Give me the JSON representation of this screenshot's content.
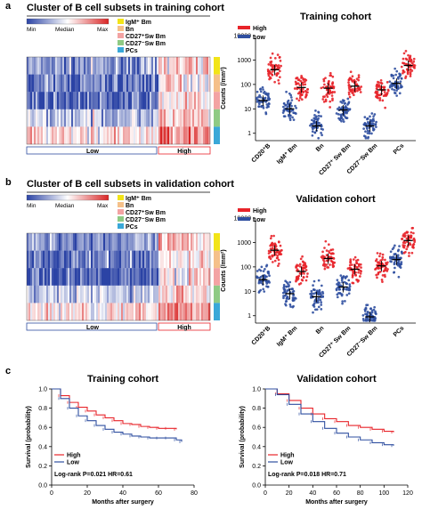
{
  "panels": {
    "a": {
      "label": "a",
      "heatmap_title": "Cluster of B cell subsets in training cohort",
      "colorbar": [
        "Min",
        "Median",
        "Max"
      ],
      "subset_legend": [
        "IgM⁺ Bm",
        "Bn",
        "CD27⁺Sw Bm",
        "CD27⁻Sw Bm",
        "PCs"
      ],
      "subset_colors": [
        "#f2e418",
        "#f5c089",
        "#f3a3a3",
        "#8fca84",
        "#3aa8d8"
      ],
      "groups": [
        "Low",
        "High"
      ]
    },
    "b": {
      "label": "b",
      "heatmap_title": "Cluster of B cell subsets in  validation cohort",
      "colorbar": [
        "Min",
        "Median",
        "Max"
      ],
      "subset_legend": [
        "IgM⁺ Bm",
        "Bn",
        "CD27⁺Sw Bm",
        "CD27⁻Sw Bm",
        "PCs"
      ],
      "subset_colors": [
        "#f2e418",
        "#f5c089",
        "#f3a3a3",
        "#8fca84",
        "#3aa8d8"
      ],
      "groups": [
        "Low",
        "High"
      ]
    },
    "c": {
      "label": "c"
    }
  },
  "chart_data": [
    {
      "type": "scatter",
      "title": "Training cohort",
      "ylabel": "Counts (/mm²)",
      "yscale": "log",
      "ylim": [
        0.5,
        10000
      ],
      "yticks": [
        "1",
        "10",
        "100",
        "1000",
        "10000"
      ],
      "categories": [
        "CD20⁺B",
        "IgM⁺ Bm",
        "Bn",
        "CD27⁺ Sw Bm",
        "CD27⁻Sw Bm",
        "PCs"
      ],
      "legend": [
        "High",
        "Low"
      ],
      "legend_position": "top-left",
      "colors": {
        "High": "#e8242a",
        "Low": "#2f4fa0"
      },
      "series": [
        {
          "name": "Low",
          "medians": [
            22,
            10,
            2,
            9,
            2,
            110
          ]
        },
        {
          "name": "High",
          "medians": [
            400,
            75,
            70,
            85,
            60,
            600
          ]
        }
      ]
    },
    {
      "type": "scatter",
      "title": "Validation cohort",
      "ylabel": "Counts (/mm²)",
      "yscale": "log",
      "ylim": [
        0.5,
        10000
      ],
      "yticks": [
        "1",
        "10",
        "100",
        "1000",
        "10000"
      ],
      "categories": [
        "CD20⁺B",
        "IgM⁺ Bm",
        "Bn",
        "CD27⁺ Sw Bm",
        "CD27⁻Sw Bm",
        "PCs"
      ],
      "legend": [
        "High",
        "Low"
      ],
      "legend_position": "top-left",
      "colors": {
        "High": "#e8242a",
        "Low": "#2f4fa0"
      },
      "series": [
        {
          "name": "Low",
          "medians": [
            30,
            8,
            6,
            15,
            0.9,
            200
          ]
        },
        {
          "name": "High",
          "medians": [
            480,
            65,
            220,
            80,
            110,
            1200
          ]
        }
      ]
    },
    {
      "type": "line",
      "title": "Training cohort",
      "xlabel": "Months after surgery",
      "ylabel": "Survival (probability)",
      "xlim": [
        0,
        80
      ],
      "ylim": [
        0,
        1.0
      ],
      "xticks": [
        "0",
        "20",
        "40",
        "60",
        "80"
      ],
      "yticks": [
        "0.0",
        "0.2",
        "0.4",
        "0.6",
        "0.8",
        "1.0"
      ],
      "legend": [
        "High",
        "Low"
      ],
      "annotation": "Log-rank P=0.021 HR=0.61",
      "series": [
        {
          "name": "High",
          "color": "#e8242a",
          "x": [
            0,
            5,
            10,
            15,
            20,
            25,
            30,
            35,
            40,
            45,
            50,
            55,
            60,
            65,
            70
          ],
          "y": [
            1.0,
            0.93,
            0.86,
            0.81,
            0.77,
            0.73,
            0.7,
            0.67,
            0.64,
            0.63,
            0.61,
            0.6,
            0.59,
            0.59,
            0.58
          ]
        },
        {
          "name": "Low",
          "color": "#2f4fa0",
          "x": [
            0,
            5,
            10,
            15,
            20,
            25,
            30,
            35,
            40,
            45,
            50,
            55,
            60,
            65,
            70,
            73
          ],
          "y": [
            1.0,
            0.9,
            0.8,
            0.72,
            0.67,
            0.62,
            0.58,
            0.55,
            0.53,
            0.51,
            0.5,
            0.49,
            0.49,
            0.49,
            0.47,
            0.45
          ]
        }
      ]
    },
    {
      "type": "line",
      "title": "Validation cohort",
      "xlabel": "Months after surgery",
      "ylabel": "Survival (probability)",
      "xlim": [
        0,
        120
      ],
      "ylim": [
        0,
        1.0
      ],
      "xticks": [
        "0",
        "20",
        "40",
        "60",
        "80",
        "100",
        "120"
      ],
      "yticks": [
        "0.0",
        "0.2",
        "0.4",
        "0.6",
        "0.8",
        "1.0"
      ],
      "legend": [
        "High",
        "Low"
      ],
      "annotation": "Log-rank P=0.018 HR=0.71",
      "series": [
        {
          "name": "High",
          "color": "#e8242a",
          "x": [
            0,
            10,
            20,
            30,
            40,
            50,
            60,
            70,
            80,
            90,
            100,
            108
          ],
          "y": [
            1.0,
            0.95,
            0.88,
            0.8,
            0.74,
            0.69,
            0.66,
            0.62,
            0.6,
            0.58,
            0.56,
            0.55
          ]
        },
        {
          "name": "Low",
          "color": "#2f4fa0",
          "x": [
            0,
            10,
            20,
            30,
            40,
            50,
            60,
            70,
            80,
            90,
            100,
            108
          ],
          "y": [
            1.0,
            0.94,
            0.84,
            0.74,
            0.66,
            0.59,
            0.54,
            0.5,
            0.47,
            0.44,
            0.42,
            0.41
          ]
        }
      ]
    }
  ]
}
